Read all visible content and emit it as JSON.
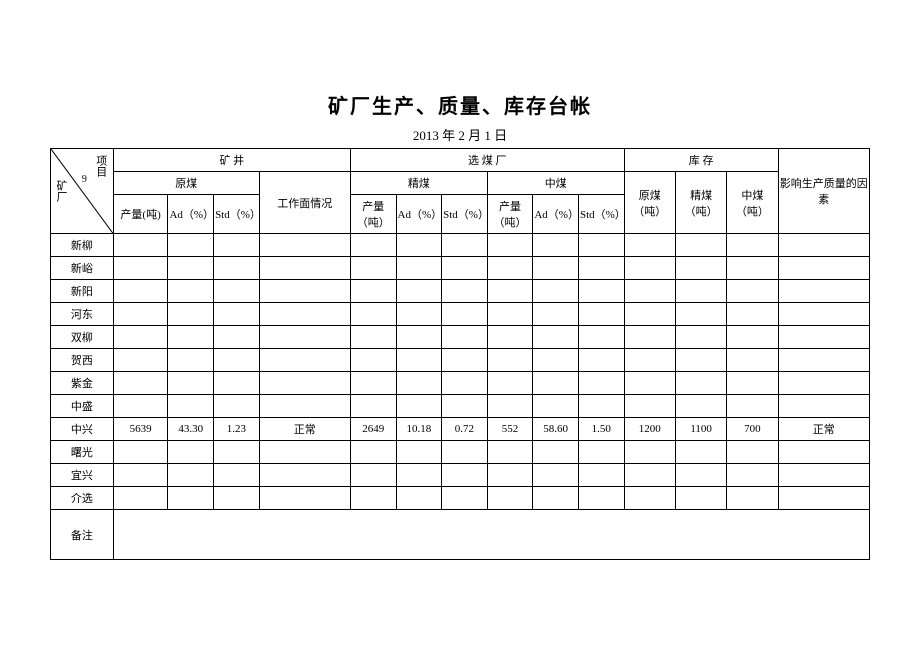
{
  "title": "矿厂生产、质量、库存台帐",
  "date": "2013 年 2 月 1 日",
  "diag": {
    "left": "矿厂",
    "right": "项目",
    "num": "9"
  },
  "headers": {
    "mine": "矿  井",
    "plant": "选  煤  厂",
    "stock": "库  存",
    "raw": "原煤",
    "work": "工作面情况",
    "fine": "精煤",
    "mid": "中煤",
    "raw2": "原煤（吨）",
    "fine2": "精煤（吨）",
    "mid2": "中煤（吨）",
    "factor": "影响生产质量的因素",
    "prod_t": "产量(吨)",
    "prod_t2": "产量（吨）",
    "prod_t3": "产量（吨）",
    "ad": "Ad（%）",
    "std": "Std（%）"
  },
  "rows": [
    {
      "name": "新柳"
    },
    {
      "name": "新峪"
    },
    {
      "name": "新阳"
    },
    {
      "name": "河东"
    },
    {
      "name": "双柳"
    },
    {
      "name": "贺西"
    },
    {
      "name": "紫金"
    },
    {
      "name": "中盛"
    },
    {
      "name": "中兴",
      "c1": "5639",
      "c2": "43.30",
      "c3": "1.23",
      "c4": "正常",
      "c5": "2649",
      "c6": "10.18",
      "c7": "0.72",
      "c8": "552",
      "c9": "58.60",
      "c10": "1.50",
      "c11": "1200",
      "c12": "1100",
      "c13": "700",
      "c14": "正常"
    },
    {
      "name": "曙光"
    },
    {
      "name": "宜兴"
    },
    {
      "name": "介选"
    }
  ],
  "notes_label": "备注"
}
